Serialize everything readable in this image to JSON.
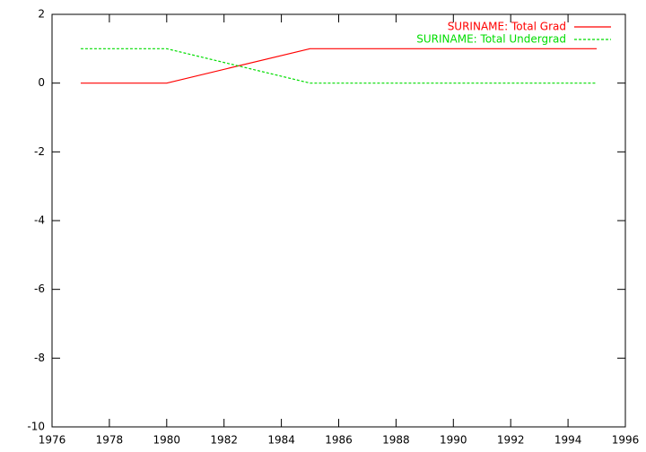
{
  "chart_data": {
    "type": "line",
    "x": [
      1977,
      1980,
      1985,
      1995
    ],
    "series": [
      {
        "name": "SURINAME: Total Grad",
        "color": "#ff0000",
        "dashed": false,
        "values": [
          0,
          0,
          1,
          1
        ]
      },
      {
        "name": "SURINAME: Total Undergrad",
        "color": "#00dd00",
        "dashed": true,
        "values": [
          1,
          1,
          0,
          0
        ]
      }
    ],
    "xlim": [
      1976,
      1996
    ],
    "xticks": [
      1976,
      1978,
      1980,
      1982,
      1984,
      1986,
      1988,
      1990,
      1992,
      1994,
      1996
    ],
    "ylim": [
      -10,
      2
    ],
    "yticks": [
      -10,
      -8,
      -6,
      -4,
      -2,
      0,
      2
    ],
    "legend": "top-right"
  }
}
